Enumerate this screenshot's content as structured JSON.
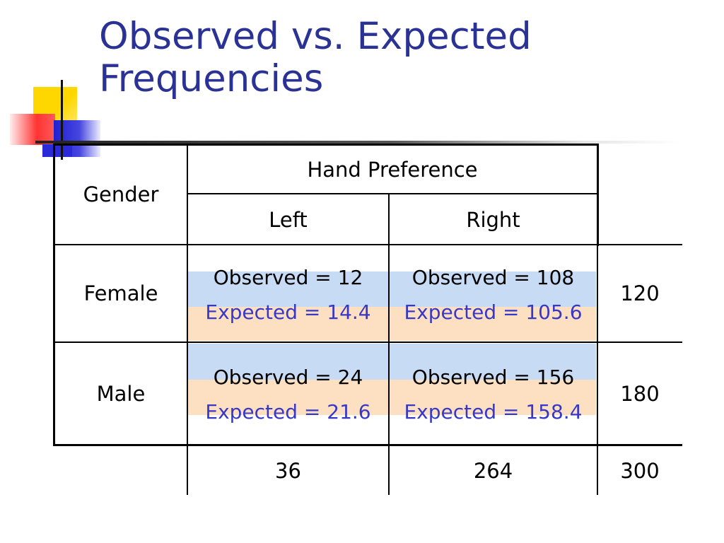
{
  "slide": {
    "title_line1": "Observed vs. Expected",
    "title_line2": "Frequencies"
  },
  "table": {
    "row_header_label": "Gender",
    "column_group_label": "Hand Preference",
    "columns": [
      "Left",
      "Right"
    ],
    "rows": [
      {
        "label": "Female",
        "left_observed": "Observed = 12",
        "left_expected": "Expected = 14.4",
        "right_observed": "Observed = 108",
        "right_expected": "Expected = 105.6",
        "total": "120"
      },
      {
        "label": "Male",
        "left_observed": "Observed = 24",
        "left_expected": "Expected = 21.6",
        "right_observed": "Observed = 156",
        "right_expected": "Expected = 158.4",
        "total": "180"
      }
    ],
    "column_totals": [
      "36",
      "264"
    ],
    "grand_total": "300"
  },
  "colors": {
    "title": "#2a3296",
    "expected_text": "#3838c8",
    "observed_band": "#c8dbf5",
    "expected_band": "#fde0c2"
  }
}
